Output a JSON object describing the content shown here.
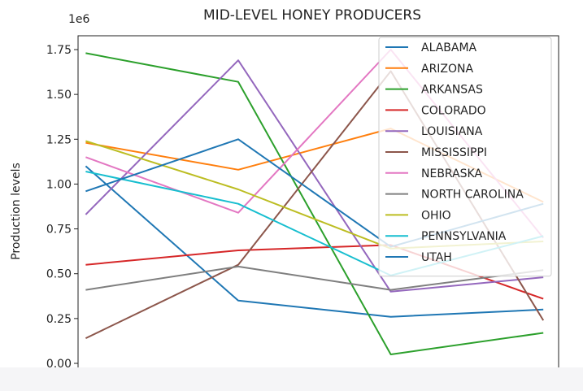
{
  "chart_data": {
    "type": "line",
    "title": "MID-LEVEL HONEY PRODUCERS",
    "ylabel": "Production levels",
    "y_scale_label": "1e6",
    "ylim": [
      0,
      1.8
    ],
    "y_ticks": [
      "0.00",
      "0.25",
      "0.50",
      "0.75",
      "1.00",
      "1.25",
      "1.50",
      "1.75"
    ],
    "y_tick_values": [
      0,
      0.25,
      0.5,
      0.75,
      1.0,
      1.25,
      1.5,
      1.75
    ],
    "x": [
      0,
      1,
      2,
      3
    ],
    "xlim": [
      -0.05,
      3.1
    ],
    "grid": false,
    "legend_position": "top-right",
    "series": [
      {
        "name": "ALABAMA",
        "color": "#1f77b4",
        "values": [
          1.1,
          0.35,
          0.26,
          0.3
        ]
      },
      {
        "name": "ARIZONA",
        "color": "#ff7f0e",
        "values": [
          1.23,
          1.08,
          1.31,
          0.9
        ]
      },
      {
        "name": "ARKANSAS",
        "color": "#2ca02c",
        "values": [
          1.73,
          1.57,
          0.05,
          0.17
        ]
      },
      {
        "name": "COLORADO",
        "color": "#d62728",
        "values": [
          0.55,
          0.63,
          0.66,
          0.36
        ]
      },
      {
        "name": "LOUISIANA",
        "color": "#9467bd",
        "values": [
          0.83,
          1.69,
          0.4,
          0.48
        ]
      },
      {
        "name": "MISSISSIPPI",
        "color": "#8c564b",
        "values": [
          0.14,
          0.55,
          1.63,
          0.24
        ]
      },
      {
        "name": "NEBRASKA",
        "color": "#e377c2",
        "values": [
          1.15,
          0.84,
          1.75,
          0.7
        ]
      },
      {
        "name": "NORTH CAROLINA",
        "color": "#7f7f7f",
        "values": [
          0.41,
          0.54,
          0.41,
          0.52
        ]
      },
      {
        "name": "OHIO",
        "color": "#bcbd22",
        "values": [
          1.24,
          0.97,
          0.64,
          0.68
        ]
      },
      {
        "name": "PENNSYLVANIA",
        "color": "#17becf",
        "values": [
          1.07,
          0.89,
          0.49,
          0.71
        ]
      },
      {
        "name": "UTAH",
        "color": "#1f77b4",
        "values": [
          0.96,
          1.25,
          0.65,
          0.89
        ]
      }
    ]
  }
}
